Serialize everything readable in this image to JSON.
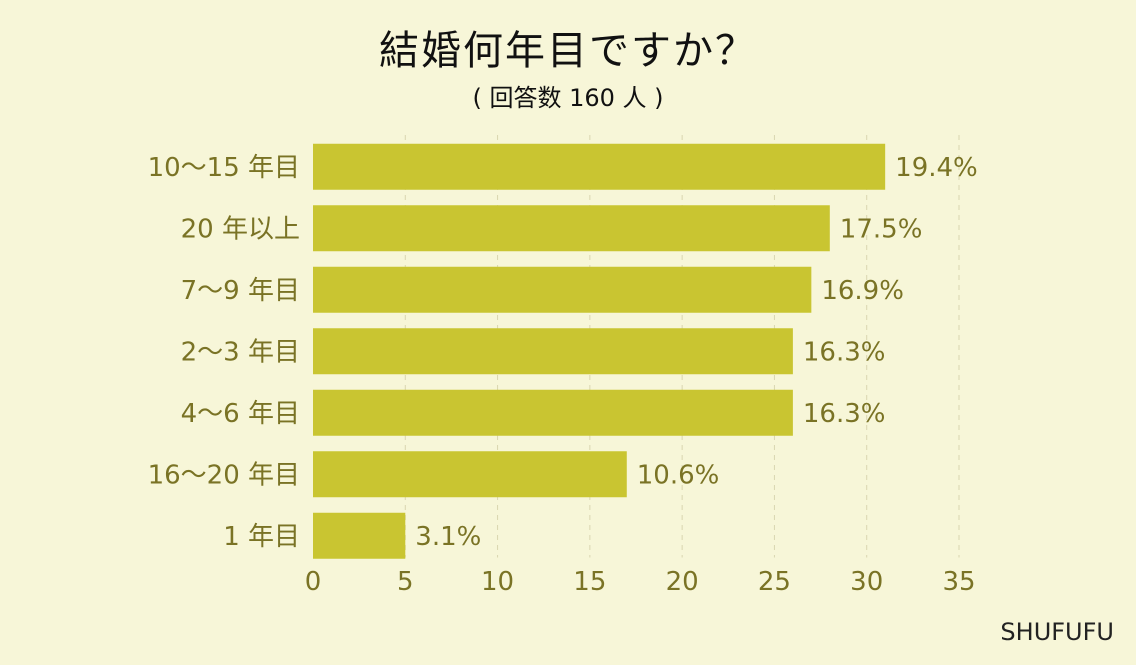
{
  "title": "結婚何年目ですか？",
  "subtitle": "( 回答数 160 人 )",
  "brand": "SHUFUFU",
  "colors": {
    "background": "#f7f6d8",
    "bar": "#c9c531",
    "text": "#7a7325",
    "grid": "#d9d6b0"
  },
  "chart_data": {
    "type": "bar",
    "orientation": "horizontal",
    "categories": [
      "10〜15 年目",
      "20 年以上",
      "7〜9 年目",
      "2〜3 年目",
      "4〜6 年目",
      "16〜20 年目",
      "1 年目"
    ],
    "values": [
      31,
      28,
      27,
      26,
      26,
      17,
      5
    ],
    "value_labels": [
      "19.4%",
      "17.5%",
      "16.9%",
      "16.3%",
      "16.3%",
      "10.6%",
      "3.1%"
    ],
    "xlim": [
      0,
      35
    ],
    "xticks": [
      0,
      5,
      10,
      15,
      20,
      25,
      30,
      35
    ],
    "grid": true
  }
}
